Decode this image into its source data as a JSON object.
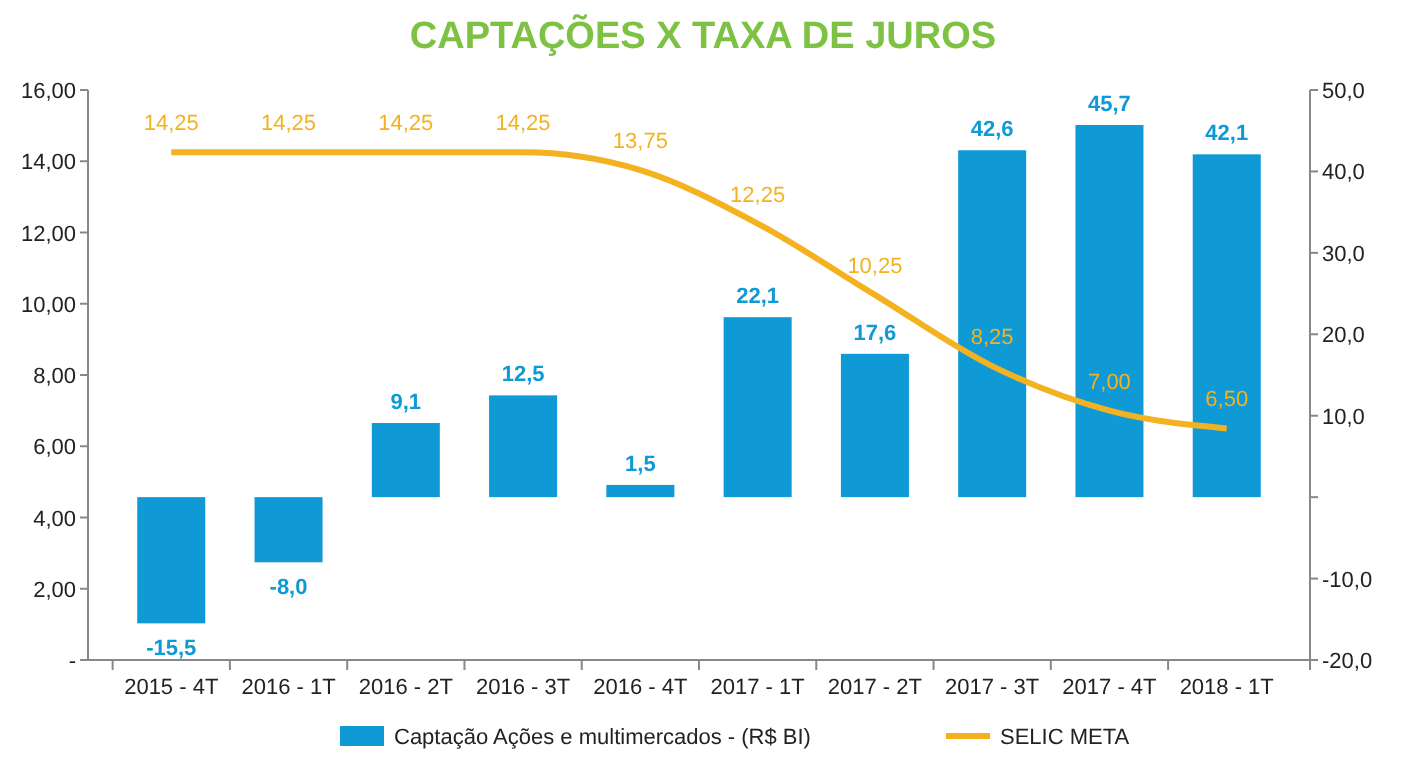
{
  "chart_data": {
    "type": "bar",
    "title": "CAPTAÇÕES X TAXA DE JUROS",
    "categories": [
      "2015 - 4T",
      "2016 - 1T",
      "2016 - 2T",
      "2016 - 3T",
      "2016 - 4T",
      "2017 - 1T",
      "2017 - 2T",
      "2017 - 3T",
      "2017 - 4T",
      "2018 - 1T"
    ],
    "series": [
      {
        "name": "Captação Ações e multimercados - (R$ BI)",
        "axis": "y2",
        "color": "#0f9ad6",
        "values": [
          -15.5,
          -8.0,
          9.1,
          12.5,
          1.5,
          22.1,
          17.6,
          42.6,
          45.7,
          42.1
        ],
        "value_labels": [
          "-15,5",
          "-8,0",
          "9,1",
          "12,5",
          "1,5",
          "22,1",
          "17,6",
          "42,6",
          "45,7",
          "42,1"
        ]
      },
      {
        "name": "SELIC META",
        "type": "line",
        "color": "#f4b120",
        "values": [
          14.25,
          14.25,
          14.25,
          14.25,
          13.75,
          12.25,
          10.25,
          8.25,
          7.0,
          6.5
        ],
        "value_labels": [
          "14,25",
          "14,25",
          "14,25",
          "14,25",
          "13,75",
          "12,25",
          "10,25",
          "8,25",
          "7,00",
          "6,50"
        ]
      }
    ],
    "ylim": [
      0,
      16
    ],
    "yticks": [
      {
        "value": 0,
        "label": "-"
      },
      {
        "value": 2,
        "label": "2,00"
      },
      {
        "value": 4,
        "label": "4,00"
      },
      {
        "value": 6,
        "label": "6,00"
      },
      {
        "value": 8,
        "label": "8,00"
      },
      {
        "value": 10,
        "label": "10,00"
      },
      {
        "value": 12,
        "label": "12,00"
      },
      {
        "value": 14,
        "label": "14,00"
      },
      {
        "value": 16,
        "label": "16,00"
      }
    ],
    "y2lim": [
      -20,
      50
    ],
    "y2ticks": [
      {
        "value": -20,
        "label": "-20,0"
      },
      {
        "value": -10,
        "label": "-10,0"
      },
      {
        "value": 0,
        "label": null
      },
      {
        "value": 10,
        "label": "10,0"
      },
      {
        "value": 20,
        "label": "20,0"
      },
      {
        "value": 30,
        "label": "30,0"
      },
      {
        "value": 40,
        "label": "40,0"
      },
      {
        "value": 50,
        "label": "50,0"
      }
    ],
    "legend": "bottom",
    "grid": false
  }
}
